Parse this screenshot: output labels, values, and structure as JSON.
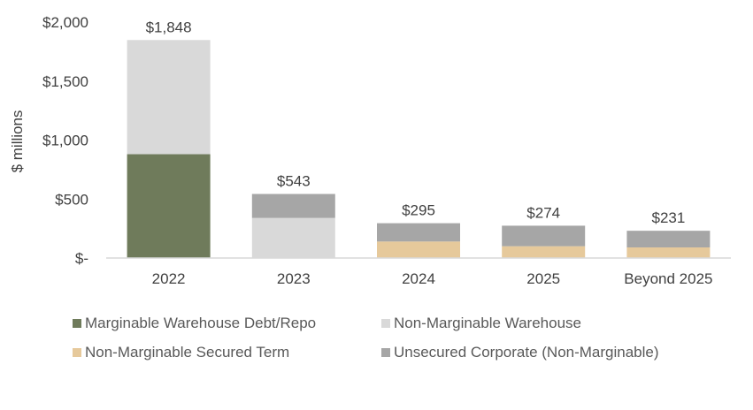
{
  "chart_data": {
    "type": "bar",
    "stacked": true,
    "ylabel": "$ millions",
    "ylim": [
      0,
      2000
    ],
    "y_ticks": [
      {
        "value": 0,
        "label": "$-"
      },
      {
        "value": 500,
        "label": "$500"
      },
      {
        "value": 1000,
        "label": "$1,000"
      },
      {
        "value": 1500,
        "label": "$1,500"
      },
      {
        "value": 2000,
        "label": "$2,000"
      }
    ],
    "categories": [
      "2022",
      "2023",
      "2024",
      "2025",
      "Beyond 2025"
    ],
    "totals": [
      "$1,848",
      "$543",
      "$295",
      "$274",
      "$231"
    ],
    "series": [
      {
        "name": "Marginable Warehouse Debt/Repo",
        "color": "#6f7b5b",
        "values": [
          880,
          0,
          0,
          0,
          0
        ]
      },
      {
        "name": "Non-Marginable Warehouse",
        "color": "#d9d9d9",
        "values": [
          968,
          340,
          0,
          0,
          0
        ]
      },
      {
        "name": "Non-Marginable Secured Term",
        "color": "#e6c99b",
        "values": [
          0,
          0,
          140,
          100,
          90
        ]
      },
      {
        "name": "Unsecured Corporate (Non-Marginable)",
        "color": "#a6a6a6",
        "values": [
          0,
          203,
          155,
          174,
          141
        ]
      }
    ],
    "grid": false,
    "legend_position": "bottom"
  }
}
